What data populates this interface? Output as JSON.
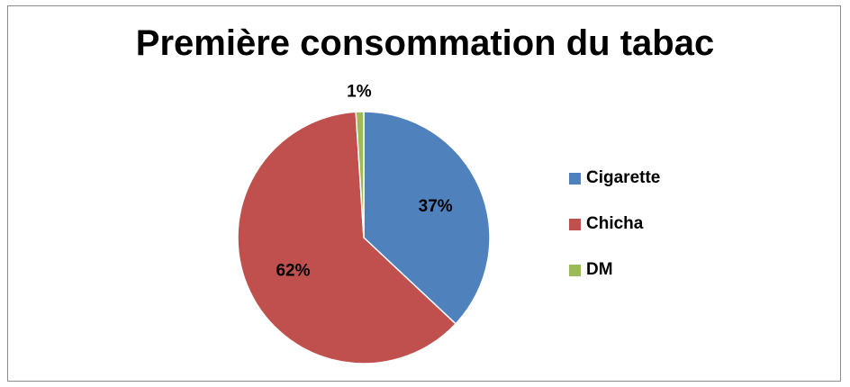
{
  "chart_data": {
    "type": "pie",
    "title": "Première consommation du tabac",
    "categories": [
      "Cigarette",
      "Chicha",
      "DM"
    ],
    "values": [
      37,
      62,
      1
    ],
    "labels": [
      "37%",
      "62%",
      "1%"
    ],
    "colors": [
      "#4f81bd",
      "#c0504d",
      "#9bbb59"
    ],
    "legend_position": "right",
    "start_angle_deg": 0,
    "direction": "clockwise"
  }
}
